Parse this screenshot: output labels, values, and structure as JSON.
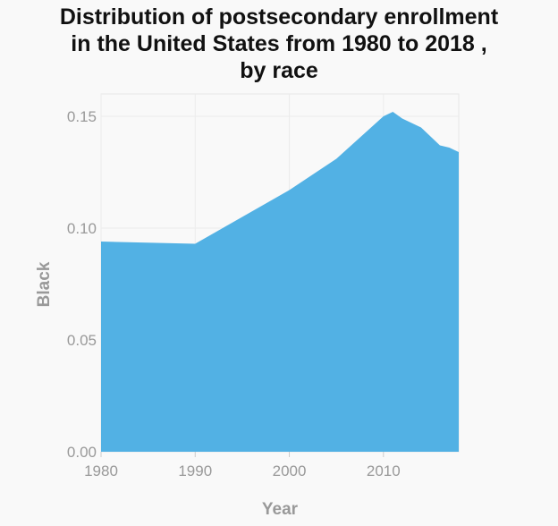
{
  "chart_data": {
    "type": "area",
    "title_lines": [
      "Distribution of postsecondary enrollment",
      "in the United States from 1980 to 2018 ,",
      "by race"
    ],
    "xlabel": "Year",
    "ylabel": "Black",
    "xlim": [
      1980,
      2018
    ],
    "ylim": [
      0,
      0.16
    ],
    "x_ticks": [
      1980,
      1990,
      2000,
      2010
    ],
    "y_ticks": [
      0.0,
      0.05,
      0.1,
      0.15
    ],
    "y_tick_labels": [
      "0.00",
      "0.05",
      "0.10",
      "0.15"
    ],
    "grid": true,
    "color": "#52b1e4",
    "series": [
      {
        "x": [
          1980,
          1990,
          2000,
          2005,
          2010,
          2011,
          2012,
          2014,
          2016,
          2017,
          2018
        ],
        "values": [
          0.094,
          0.093,
          0.117,
          0.131,
          0.15,
          0.152,
          0.149,
          0.145,
          0.137,
          0.136,
          0.134
        ]
      }
    ]
  }
}
